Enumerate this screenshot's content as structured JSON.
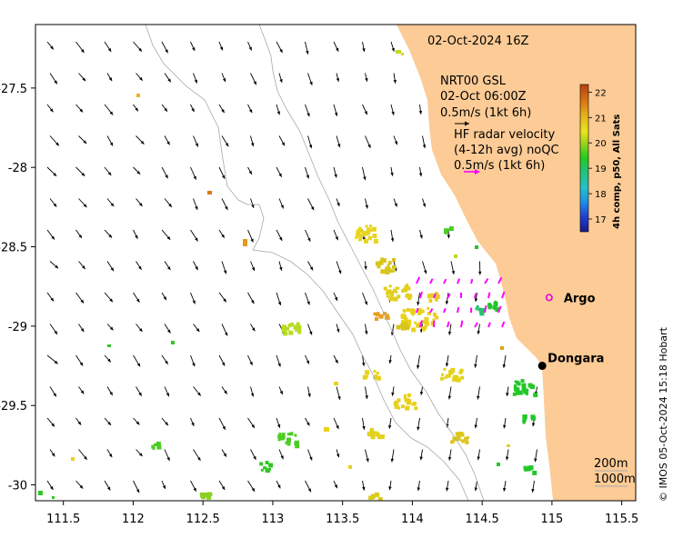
{
  "map": {
    "lon_range": [
      111.3,
      115.6
    ],
    "lat_range": [
      -30.1,
      -27.1
    ],
    "x_ticks": [
      "111.5",
      "112",
      "112.5",
      "113",
      "113.5",
      "114",
      "114.5",
      "115",
      "115.5"
    ],
    "x_tick_values": [
      111.5,
      112,
      112.5,
      113,
      113.5,
      114,
      114.5,
      115,
      115.5
    ],
    "y_ticks": [
      "-27.5",
      "-28",
      "-28.5",
      "-29",
      "-29.5",
      "-30"
    ],
    "y_tick_values": [
      -27.5,
      -28,
      -28.5,
      -29,
      -29.5,
      -30
    ],
    "land_color": "#fccb96",
    "contour_color": "#a8a8a8"
  },
  "text": {
    "date": "02-Oct-2024 16Z",
    "gsl_line1": "NRT00 GSL",
    "gsl_line2": "02-Oct 06:00Z",
    "gsl_line3": "0.5m/s (1kt 6h)",
    "hf_line1": "HF radar velocity",
    "hf_line2": "(4-12h avg) noQC",
    "hf_line3": "0.5m/s (1kt 6h)",
    "contour_200": "200m",
    "contour_1000": "1000m",
    "credit": "© IMOS 05-Oct-2024 15:18 Hobart"
  },
  "places": [
    {
      "name": "Argo",
      "lon": 114.98,
      "lat": -28.82,
      "marker": "magenta-circle-icon"
    },
    {
      "name": "Dongara",
      "lon": 114.93,
      "lat": -29.25,
      "marker": "black-dot-icon"
    }
  ],
  "colorbar": {
    "title": "4h comp, p50, All Sats",
    "ticks": [
      "22",
      "21",
      "20",
      "19",
      "18",
      "17"
    ],
    "tick_values": [
      22,
      21,
      20,
      19,
      18,
      17
    ],
    "range": [
      16.5,
      22.3
    ],
    "colors": [
      "#1a1a8c",
      "#1f3fd1",
      "#1c8fe8",
      "#22c2c8",
      "#22c46e",
      "#1fcc1f",
      "#9bd31c",
      "#e9e41c",
      "#e8b61c",
      "#d97a14",
      "#b8400e"
    ]
  },
  "arrow_colors": {
    "gsl": "#000000",
    "hf_radar": "#ff00ff"
  }
}
